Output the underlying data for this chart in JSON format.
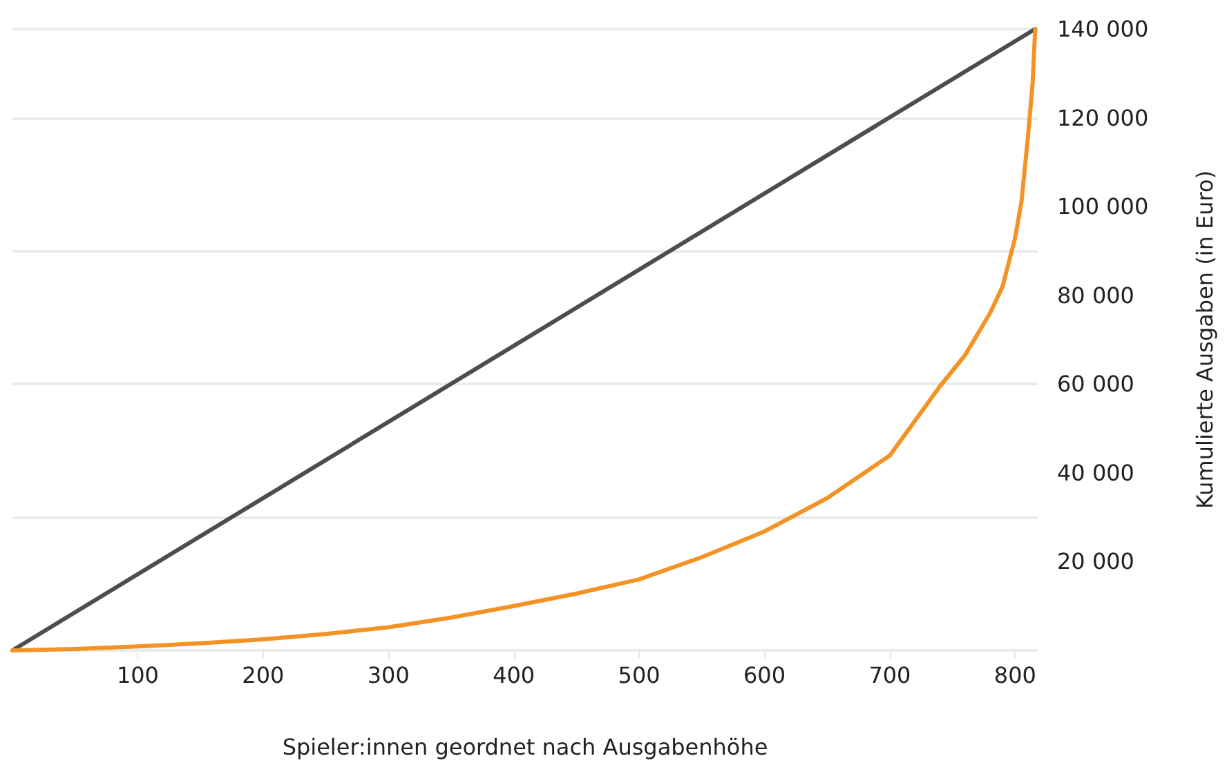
{
  "chart_data": {
    "type": "line",
    "xlabel": "Spieler:innen geordnet nach Ausgabenhöhe",
    "ylabel": "Kumulierte Ausgaben (in Euro)",
    "xlim": [
      0,
      818
    ],
    "xticks": [
      100,
      200,
      300,
      400,
      500,
      600,
      700,
      800
    ],
    "ylim": [
      0,
      140000
    ],
    "yticks": [
      {
        "value": 20000,
        "label": "20 000"
      },
      {
        "value": 40000,
        "label": "40 000"
      },
      {
        "value": 60000,
        "label": "60 000"
      },
      {
        "value": 80000,
        "label": "80 000"
      },
      {
        "value": 100000,
        "label": "100 000"
      },
      {
        "value": 120000,
        "label": "120 000"
      },
      {
        "value": 140000,
        "label": "140 000"
      }
    ],
    "grid": "y",
    "marker": "none",
    "line_style": "solid",
    "series": [
      {
        "color": "#4d4d4d",
        "x": [
          0,
          816
        ],
        "values": [
          0,
          140000
        ]
      },
      {
        "color": "#f39325",
        "x": [
          0,
          50,
          100,
          150,
          200,
          250,
          300,
          350,
          400,
          450,
          500,
          550,
          600,
          650,
          700,
          740,
          760,
          780,
          790,
          800,
          805,
          810,
          814,
          816
        ],
        "values": [
          0,
          300,
          900,
          1600,
          2500,
          3700,
          5200,
          7400,
          10000,
          12800,
          16000,
          21000,
          26800,
          34300,
          43900,
          59500,
          66500,
          76000,
          82000,
          93000,
          101000,
          115000,
          128000,
          140000
        ]
      }
    ]
  }
}
